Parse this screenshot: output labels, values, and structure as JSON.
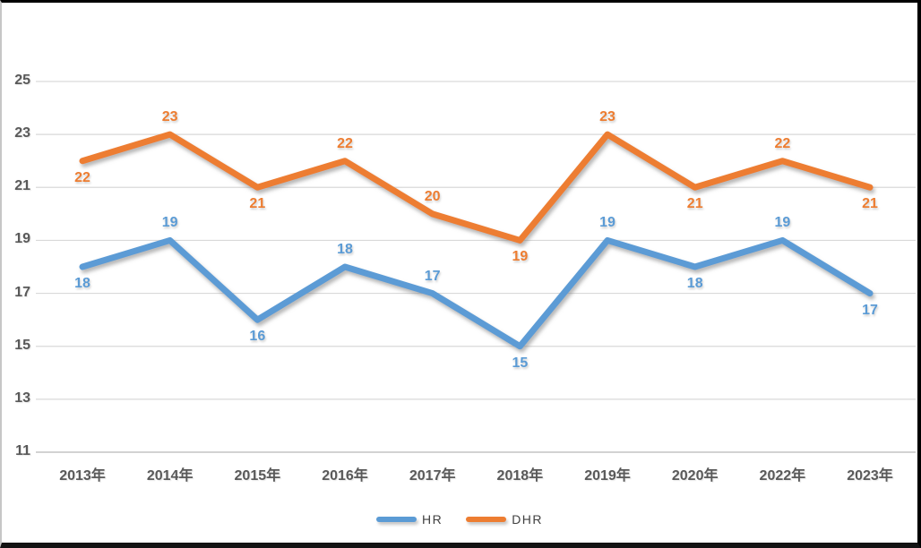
{
  "chart_data": {
    "type": "line",
    "title": "",
    "xlabel": "",
    "ylabel": "",
    "categories": [
      "2013年",
      "2014年",
      "2015年",
      "2016年",
      "2017年",
      "2018年",
      "2019年",
      "2020年",
      "2022年",
      "2023年"
    ],
    "series": [
      {
        "name": "HR",
        "color": "#5B9BD5",
        "values": [
          18,
          19,
          16,
          18,
          17,
          15,
          19,
          18,
          19,
          17
        ],
        "label_positions": [
          "below",
          "above",
          "below",
          "above",
          "above",
          "below",
          "above",
          "below",
          "above",
          "below"
        ]
      },
      {
        "name": "DHR",
        "color": "#ED7D31",
        "values": [
          22,
          23,
          21,
          22,
          20,
          19,
          23,
          21,
          22,
          21
        ],
        "label_positions": [
          "below",
          "above",
          "below",
          "above",
          "above",
          "below",
          "above",
          "below",
          "above",
          "below"
        ]
      }
    ],
    "yticks": [
      25,
      23,
      21,
      19,
      17,
      15,
      13,
      11
    ],
    "ylim": [
      11,
      25
    ],
    "grid": true,
    "legend_position": "bottom",
    "data_labels_shown": true
  },
  "colors": {
    "gridline": "#d9d9d9",
    "axis_line": "#c3c3c3",
    "axis_text": "#595959",
    "background": "#ffffff",
    "frame_border": "#000000"
  }
}
